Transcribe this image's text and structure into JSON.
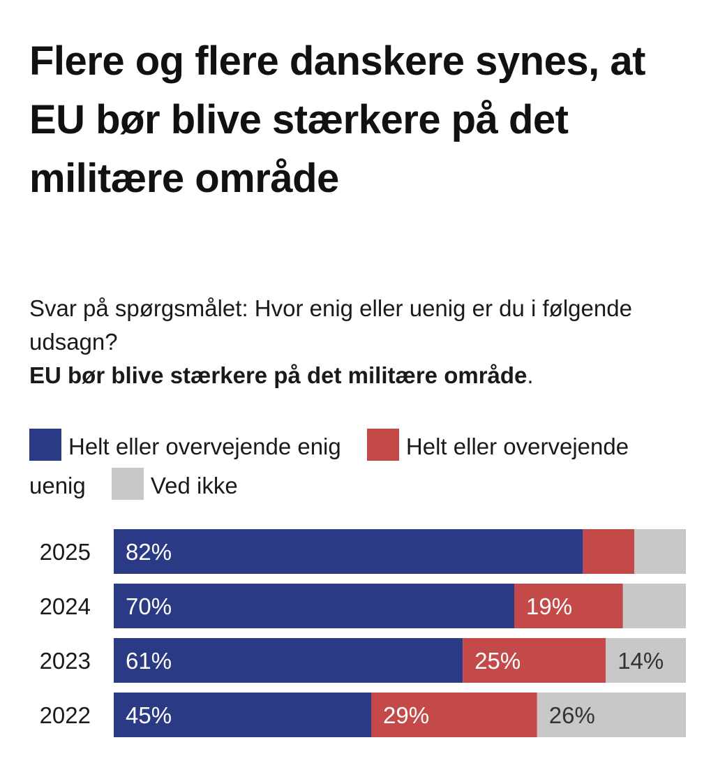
{
  "title": "Flere og flere danskere synes, at EU bør blive stærkere på det militære område",
  "subtitle": {
    "question": "Svar på spørgsmålet: Hvor enig eller uenig er du i følgende udsagn?",
    "statement": "EU bør blive stærkere på det militære område",
    "end_punct": "."
  },
  "chart_data": {
    "type": "bar",
    "orientation": "horizontal",
    "stacked": true,
    "categories": [
      "2025",
      "2024",
      "2023",
      "2022"
    ],
    "series": [
      {
        "name": "Helt eller overvejende enig",
        "color": "#2a3a84",
        "values": [
          82,
          70,
          61,
          45
        ],
        "labels": [
          "82%",
          "70%",
          "61%",
          "45%"
        ]
      },
      {
        "name": "Helt eller overvejende uenig",
        "color": "#c44a4a",
        "values": [
          9,
          19,
          25,
          29
        ],
        "labels": [
          "",
          "19%",
          "25%",
          "29%"
        ]
      },
      {
        "name": "Ved ikke",
        "color": "#c8c8c8",
        "values": [
          9,
          11,
          14,
          26
        ],
        "labels": [
          "",
          "",
          "14%",
          "26%"
        ]
      }
    ],
    "xlim": [
      0,
      100
    ],
    "grid": false,
    "legend_position": "top"
  }
}
